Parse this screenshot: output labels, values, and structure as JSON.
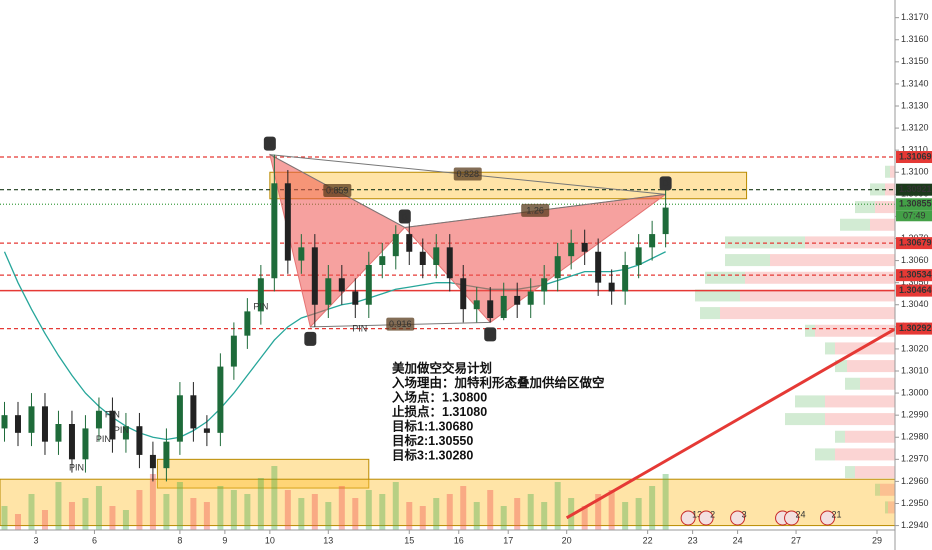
{
  "chart_data": {
    "type": "candlestick",
    "x": [
      1,
      4,
      7,
      10,
      13,
      16,
      19,
      22,
      25,
      28,
      31,
      34,
      37,
      40,
      43,
      46,
      49,
      52,
      55,
      58,
      61,
      64,
      67,
      70,
      73,
      76,
      79,
      82,
      85,
      88,
      91,
      94,
      97,
      100,
      103,
      106,
      109,
      112,
      115,
      118,
      121,
      124,
      127,
      130,
      133,
      136,
      139,
      142,
      145,
      148
    ],
    "open": [
      1.2984,
      1.299,
      1.2982,
      1.2994,
      1.2978,
      1.2986,
      1.297,
      1.2984,
      1.2992,
      1.2979,
      1.2985,
      1.2972,
      1.2966,
      1.2978,
      1.2999,
      1.2984,
      1.2982,
      1.3012,
      1.3026,
      1.3037,
      1.3052,
      1.3095,
      1.306,
      1.3066,
      1.304,
      1.3052,
      1.3046,
      1.304,
      1.3058,
      1.3062,
      1.3072,
      1.3064,
      1.3058,
      1.3066,
      1.3052,
      1.3038,
      1.3042,
      1.3034,
      1.3044,
      1.304,
      1.3046,
      1.3052,
      1.3062,
      1.3068,
      1.3064,
      1.305,
      1.3046,
      1.3058,
      1.3066,
      1.3072
    ],
    "high": [
      1.2996,
      1.2996,
      1.3,
      1.3,
      1.2992,
      1.2992,
      1.299,
      1.2998,
      1.2998,
      1.2991,
      1.2991,
      1.2978,
      1.2984,
      1.3005,
      1.3005,
      1.299,
      1.3018,
      1.3032,
      1.3043,
      1.3058,
      1.3108,
      1.3101,
      1.3072,
      1.3072,
      1.3058,
      1.3058,
      1.3052,
      1.3064,
      1.3068,
      1.3076,
      1.3078,
      1.307,
      1.3072,
      1.3072,
      1.3058,
      1.3048,
      1.3048,
      1.305,
      1.305,
      1.3052,
      1.3058,
      1.3068,
      1.3074,
      1.3074,
      1.307,
      1.3056,
      1.3064,
      1.3072,
      1.3078,
      1.3092
    ],
    "low": [
      1.2978,
      1.2976,
      1.2976,
      1.2972,
      1.2972,
      1.2964,
      1.2964,
      1.2978,
      1.2973,
      1.2973,
      1.2966,
      1.296,
      1.296,
      1.2972,
      1.2978,
      1.2976,
      1.2976,
      1.3006,
      1.302,
      1.3031,
      1.3046,
      1.3054,
      1.3054,
      1.303,
      1.3034,
      1.304,
      1.3034,
      1.3034,
      1.3052,
      1.3056,
      1.3058,
      1.3052,
      1.3052,
      1.3046,
      1.3032,
      1.3032,
      1.3032,
      1.3033,
      1.3034,
      1.3034,
      1.304,
      1.3046,
      1.3056,
      1.3058,
      1.3044,
      1.304,
      1.304,
      1.3052,
      1.306,
      1.3066
    ],
    "close": [
      1.299,
      1.2982,
      1.2994,
      1.2978,
      1.2986,
      1.297,
      1.2984,
      1.2992,
      1.2979,
      1.2985,
      1.2972,
      1.2966,
      1.2978,
      1.2999,
      1.2984,
      1.2982,
      1.3012,
      1.3026,
      1.3037,
      1.3052,
      1.3095,
      1.306,
      1.3066,
      1.304,
      1.3052,
      1.3046,
      1.304,
      1.3058,
      1.3062,
      1.3072,
      1.3064,
      1.3058,
      1.3066,
      1.3052,
      1.3038,
      1.3042,
      1.3034,
      1.3044,
      1.304,
      1.3046,
      1.3052,
      1.3062,
      1.3068,
      1.3064,
      1.305,
      1.3046,
      1.3058,
      1.3066,
      1.3072,
      1.3084
    ],
    "volume": [
      30,
      20,
      45,
      25,
      60,
      35,
      40,
      55,
      30,
      25,
      50,
      70,
      45,
      60,
      40,
      35,
      55,
      50,
      45,
      65,
      80,
      50,
      40,
      45,
      35,
      55,
      40,
      50,
      45,
      60,
      35,
      30,
      40,
      45,
      55,
      35,
      50,
      30,
      40,
      45,
      35,
      60,
      40,
      30,
      45,
      50,
      35,
      40,
      55,
      70
    ],
    "ma": [
      1.3064,
      1.305,
      1.3038,
      1.3027,
      1.3017,
      1.3008,
      1.3,
      1.2994,
      1.2989,
      1.2985,
      1.2982,
      1.298,
      1.2979,
      1.298,
      1.2983,
      1.2987,
      1.2993,
      1.3,
      1.3008,
      1.3016,
      1.3024,
      1.303,
      1.3034,
      1.3036,
      1.3038,
      1.304,
      1.3041,
      1.3043,
      1.3045,
      1.3047,
      1.3048,
      1.3049,
      1.305,
      1.305,
      1.3049,
      1.3048,
      1.3047,
      1.3047,
      1.3047,
      1.3048,
      1.3049,
      1.3051,
      1.3053,
      1.3055,
      1.3055,
      1.3055,
      1.3056,
      1.3058,
      1.3061,
      1.3064
    ],
    "up_color": "#1e6b3a",
    "down_color": "#222222",
    "ma_color": "#26a69a",
    "xlim": [
      0,
      199
    ],
    "xticks": [
      {
        "value": 8,
        "label": "3"
      },
      {
        "value": 21,
        "label": "6"
      },
      {
        "value": 40,
        "label": "8"
      },
      {
        "value": 50,
        "label": "9"
      },
      {
        "value": 60,
        "label": "10"
      },
      {
        "value": 73,
        "label": "13"
      },
      {
        "value": 91,
        "label": "15"
      },
      {
        "value": 102,
        "label": "16"
      },
      {
        "value": 113,
        "label": "17"
      },
      {
        "value": 126,
        "label": "20"
      },
      {
        "value": 144,
        "label": "22"
      },
      {
        "value": 154,
        "label": "23"
      },
      {
        "value": 164,
        "label": "24"
      },
      {
        "value": 177,
        "label": "27"
      },
      {
        "value": 195,
        "label": "29"
      }
    ],
    "ylim": [
      1.2938,
      1.3178
    ],
    "yticks": [
      {
        "value": 1.317,
        "label": "1.3170"
      },
      {
        "value": 1.316,
        "label": "1.3160"
      },
      {
        "value": 1.315,
        "label": "1.3150"
      },
      {
        "value": 1.314,
        "label": "1.3140"
      },
      {
        "value": 1.313,
        "label": "1.3130"
      },
      {
        "value": 1.312,
        "label": "1.3120"
      },
      {
        "value": 1.311,
        "label": "1.3110"
      },
      {
        "value": 1.31,
        "label": "1.3100"
      },
      {
        "value": 1.309,
        "label": "1.3090"
      },
      {
        "value": 1.308,
        "label": "1.3080"
      },
      {
        "value": 1.307,
        "label": "1.3070"
      },
      {
        "value": 1.306,
        "label": "1.3060"
      },
      {
        "value": 1.305,
        "label": "1.3050"
      },
      {
        "value": 1.304,
        "label": "1.3040"
      },
      {
        "value": 1.303,
        "label": "1.3030"
      },
      {
        "value": 1.302,
        "label": "1.3020"
      },
      {
        "value": 1.301,
        "label": "1.3010"
      },
      {
        "value": 1.3,
        "label": "1.3000"
      },
      {
        "value": 1.299,
        "label": "1.2990"
      },
      {
        "value": 1.298,
        "label": "1.2980"
      },
      {
        "value": 1.297,
        "label": "1.2970"
      },
      {
        "value": 1.296,
        "label": "1.2960"
      },
      {
        "value": 1.295,
        "label": "1.2950"
      },
      {
        "value": 1.294,
        "label": "1.2940"
      }
    ],
    "price_lines": [
      {
        "value": 1.31069,
        "color": "#e53935",
        "style": "dashed"
      },
      {
        "value": 1.30921,
        "color": "#1b3a1b",
        "style": "dashed"
      },
      {
        "value": 1.30855,
        "color": "#43a047",
        "style": "dotted"
      },
      {
        "value": 1.30679,
        "color": "#e53935",
        "style": "dashed"
      },
      {
        "value": 1.30534,
        "color": "#e53935",
        "style": "dashed"
      },
      {
        "value": 1.30464,
        "color": "#e53935",
        "style": "solid"
      },
      {
        "value": 1.30292,
        "color": "#e53935",
        "style": "dashed"
      }
    ],
    "countdown": "07:49",
    "pattern": [
      {
        "label": "X",
        "x": 60,
        "price": 1.3108
      },
      {
        "label": "A",
        "x": 69,
        "price": 1.303
      },
      {
        "label": "B",
        "x": 90,
        "price": 1.3075
      },
      {
        "label": "C",
        "x": 109,
        "price": 1.3032
      },
      {
        "label": "D",
        "x": 148,
        "price": 1.309
      }
    ],
    "ratios": [
      0.859,
      0.828,
      1.26,
      0.916
    ],
    "zones": [
      {
        "x": [
          60,
          166
        ],
        "price": [
          1.3088,
          1.31
        ]
      },
      {
        "x": [
          35,
          82
        ],
        "price": [
          1.2957,
          1.297
        ]
      },
      {
        "x": [
          0,
          199
        ],
        "price": [
          1.294,
          1.2961
        ]
      }
    ],
    "trendline": {
      "x": [
        126,
        199
      ],
      "price": [
        1.29435,
        1.3029
      ]
    },
    "volume_profile": {
      "prices": [
        1.31,
        1.3092,
        1.3084,
        1.3076,
        1.3068,
        1.306,
        1.3052,
        1.3044,
        1.3036,
        1.3028,
        1.302,
        1.3012,
        1.3004,
        1.2996,
        1.2988,
        1.298,
        1.2972,
        1.2964,
        1.2956,
        1.2948
      ],
      "buy": [
        5,
        15,
        20,
        30,
        80,
        45,
        40,
        45,
        20,
        10,
        10,
        12,
        15,
        30,
        40,
        10,
        20,
        10,
        5,
        3
      ],
      "sell": [
        5,
        10,
        20,
        25,
        90,
        125,
        150,
        155,
        175,
        80,
        60,
        48,
        35,
        70,
        70,
        50,
        60,
        40,
        15,
        7
      ]
    },
    "pins": [
      {
        "x": 58,
        "price": 1.3039,
        "text": "PIN",
        "color": "#4caf50"
      },
      {
        "x": 80,
        "price": 1.3029,
        "text": "PIN",
        "color": "#4caf50"
      },
      {
        "x": 17,
        "price": 1.2966,
        "text": "PIN",
        "color": "#4caf50"
      },
      {
        "x": 25,
        "price": 1.299,
        "text": "PIN",
        "color": "#ef5350"
      },
      {
        "x": 27,
        "price": 1.2983,
        "text": "PIN",
        "color": "#ef5350"
      },
      {
        "x": 23,
        "price": 1.2979,
        "text": "PIN",
        "color": "#ef5350"
      }
    ],
    "events": [
      {
        "x": 153,
        "count": 13
      },
      {
        "x": 157,
        "count": 2
      },
      {
        "x": 164,
        "count": 3
      },
      {
        "x": 174,
        "count": 2
      },
      {
        "x": 176,
        "count": 24
      },
      {
        "x": 184,
        "count": 21
      }
    ],
    "annotation": [
      "美加做空交易计划",
      "入场理由：加特利形态叠加供给区做空",
      "入场点：1.30800",
      "止损点：1.31080",
      "目标1:1.30680",
      "目标2:1.30550",
      "目标3:1.30280"
    ]
  }
}
